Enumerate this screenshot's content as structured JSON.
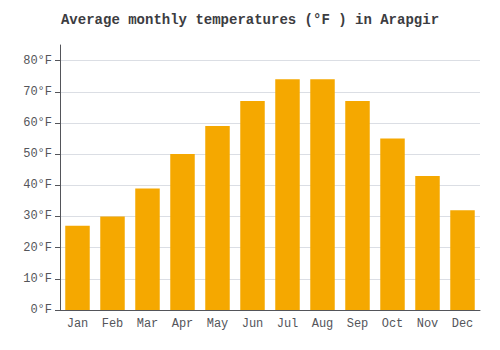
{
  "chart_data": {
    "type": "bar",
    "title": "Average monthly temperatures (°F ) in Arapgir",
    "categories": [
      "Jan",
      "Feb",
      "Mar",
      "Apr",
      "May",
      "Jun",
      "Jul",
      "Aug",
      "Sep",
      "Oct",
      "Nov",
      "Dec"
    ],
    "values": [
      27,
      30,
      39,
      50,
      59,
      67,
      74,
      74,
      67,
      55,
      43,
      32
    ],
    "color": "#F5A800",
    "ylim": [
      0,
      85
    ],
    "yticks": [
      {
        "value": 0,
        "label": "0°F"
      },
      {
        "value": 10,
        "label": "10°F"
      },
      {
        "value": 20,
        "label": "20°F"
      },
      {
        "value": 30,
        "label": "30°F"
      },
      {
        "value": 40,
        "label": "40°F"
      },
      {
        "value": 50,
        "label": "50°F"
      },
      {
        "value": 60,
        "label": "60°F"
      },
      {
        "value": 70,
        "label": "70°F"
      },
      {
        "value": 80,
        "label": "80°F"
      }
    ],
    "grid": true
  }
}
